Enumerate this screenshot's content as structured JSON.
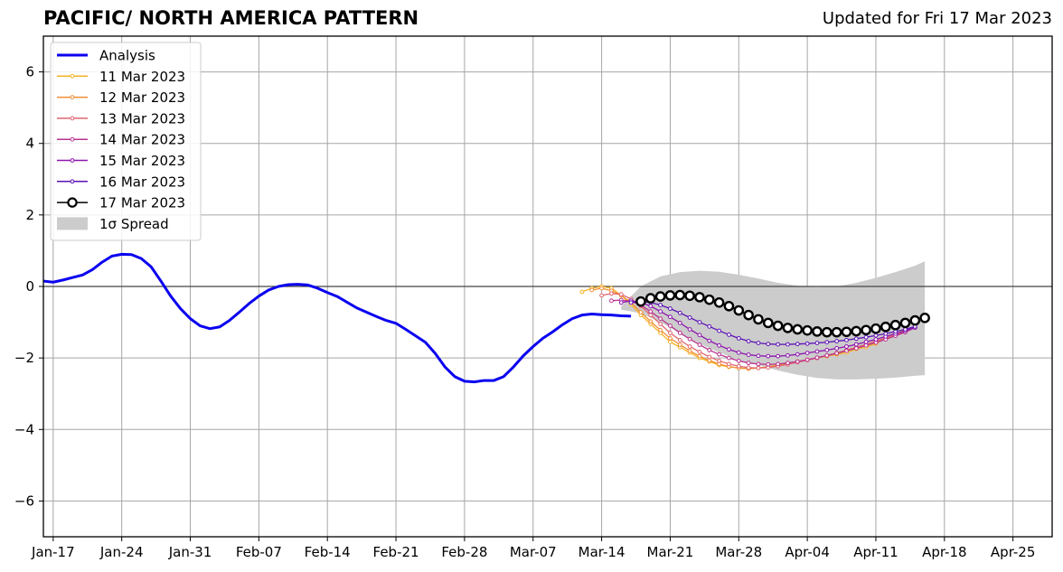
{
  "chart_data": {
    "type": "line",
    "title": "PACIFIC/ NORTH AMERICA PATTERN",
    "subtitle": "Updated for Fri 17 Mar 2023",
    "xlabel": "",
    "ylabel": "",
    "ylim": [
      -7,
      7
    ],
    "y_ticks": [
      -6,
      -4,
      -2,
      0,
      2,
      4,
      6
    ],
    "y_tick_labels": [
      "−6",
      "−4",
      "−2",
      "0",
      "2",
      "4",
      "6"
    ],
    "xlim": [
      "2023-01-16",
      "2023-04-29"
    ],
    "x_ticks": [
      "2023-01-17",
      "2023-01-24",
      "2023-01-31",
      "2023-02-07",
      "2023-02-14",
      "2023-02-21",
      "2023-02-28",
      "2023-03-07",
      "2023-03-14",
      "2023-03-21",
      "2023-03-28",
      "2023-04-04",
      "2023-04-11",
      "2023-04-18",
      "2023-04-25"
    ],
    "x_tick_labels": [
      "Jan-17",
      "Jan-24",
      "Jan-31",
      "Feb-07",
      "Feb-14",
      "Feb-21",
      "Feb-28",
      "Mar-07",
      "Mar-14",
      "Mar-21",
      "Mar-28",
      "Apr-04",
      "Apr-11",
      "Apr-18",
      "Apr-25"
    ],
    "grid": true,
    "legend_position": "top-left",
    "zero_line": true,
    "series": [
      {
        "name": "Analysis",
        "style": "thick-line",
        "color": "#0a00f0",
        "x": [
          "2023-01-16",
          "2023-01-17",
          "2023-01-18",
          "2023-01-19",
          "2023-01-20",
          "2023-01-21",
          "2023-01-22",
          "2023-01-23",
          "2023-01-24",
          "2023-01-25",
          "2023-01-26",
          "2023-01-27",
          "2023-01-28",
          "2023-01-29",
          "2023-01-30",
          "2023-01-31",
          "2023-02-01",
          "2023-02-02",
          "2023-02-03",
          "2023-02-04",
          "2023-02-05",
          "2023-02-06",
          "2023-02-07",
          "2023-02-08",
          "2023-02-09",
          "2023-02-10",
          "2023-02-11",
          "2023-02-12",
          "2023-02-13",
          "2023-02-14",
          "2023-02-15",
          "2023-02-16",
          "2023-02-17",
          "2023-02-18",
          "2023-02-19",
          "2023-02-20",
          "2023-02-21",
          "2023-02-22",
          "2023-02-23",
          "2023-02-24",
          "2023-02-25",
          "2023-02-26",
          "2023-02-27",
          "2023-02-28",
          "2023-03-01",
          "2023-03-02",
          "2023-03-03",
          "2023-03-04",
          "2023-03-05",
          "2023-03-06",
          "2023-03-07",
          "2023-03-08",
          "2023-03-09",
          "2023-03-10",
          "2023-03-11",
          "2023-03-12",
          "2023-03-13",
          "2023-03-14",
          "2023-03-15",
          "2023-03-16",
          "2023-03-17"
        ],
        "values": [
          0.15,
          0.12,
          0.18,
          0.25,
          0.32,
          0.47,
          0.68,
          0.85,
          0.9,
          0.89,
          0.78,
          0.55,
          0.15,
          -0.27,
          -0.62,
          -0.9,
          -1.1,
          -1.18,
          -1.13,
          -0.95,
          -0.72,
          -0.48,
          -0.27,
          -0.1,
          0.0,
          0.05,
          0.06,
          0.04,
          -0.05,
          -0.17,
          -0.28,
          -0.44,
          -0.6,
          -0.72,
          -0.84,
          -0.95,
          -1.03,
          -1.2,
          -1.38,
          -1.56,
          -1.87,
          -2.25,
          -2.52,
          -2.65,
          -2.67,
          -2.63,
          -2.63,
          -2.52,
          -2.25,
          -1.94,
          -1.68,
          -1.45,
          -1.27,
          -1.07,
          -0.9,
          -0.8,
          -0.77,
          -0.79,
          -0.8,
          -0.82,
          -0.83
        ]
      },
      {
        "name": "11 Mar 2023",
        "style": "small-markers",
        "color": "#f5b325",
        "x": [
          "2023-03-12",
          "2023-03-13",
          "2023-03-14",
          "2023-03-15",
          "2023-03-16",
          "2023-03-17",
          "2023-03-18",
          "2023-03-19",
          "2023-03-20",
          "2023-03-21",
          "2023-03-22",
          "2023-03-23",
          "2023-03-24",
          "2023-03-25",
          "2023-03-26",
          "2023-03-27",
          "2023-03-28",
          "2023-03-29",
          "2023-03-30",
          "2023-03-31",
          "2023-04-01",
          "2023-04-02",
          "2023-04-03",
          "2023-04-04",
          "2023-04-05",
          "2023-04-06",
          "2023-04-07",
          "2023-04-08",
          "2023-04-09",
          "2023-04-10",
          "2023-04-11",
          "2023-04-12",
          "2023-04-13",
          "2023-04-14"
        ],
        "values": [
          -0.15,
          -0.05,
          0.0,
          -0.05,
          -0.25,
          -0.5,
          -0.8,
          -1.05,
          -1.3,
          -1.55,
          -1.7,
          -1.85,
          -2.0,
          -2.1,
          -2.2,
          -2.25,
          -2.28,
          -2.3,
          -2.28,
          -2.25,
          -2.2,
          -2.15,
          -2.1,
          -2.05,
          -2.0,
          -1.95,
          -1.9,
          -1.85,
          -1.75,
          -1.7,
          -1.6,
          -1.45,
          -1.35,
          -1.2
        ]
      },
      {
        "name": "12 Mar 2023",
        "style": "small-markers",
        "color": "#f08e36",
        "x": [
          "2023-03-13",
          "2023-03-14",
          "2023-03-15",
          "2023-03-16",
          "2023-03-17",
          "2023-03-18",
          "2023-03-19",
          "2023-03-20",
          "2023-03-21",
          "2023-03-22",
          "2023-03-23",
          "2023-03-24",
          "2023-03-25",
          "2023-03-26",
          "2023-03-27",
          "2023-03-28",
          "2023-03-29",
          "2023-03-30",
          "2023-03-31",
          "2023-04-01",
          "2023-04-02",
          "2023-04-03",
          "2023-04-04",
          "2023-04-05",
          "2023-04-06",
          "2023-04-07",
          "2023-04-08",
          "2023-04-09",
          "2023-04-10",
          "2023-04-11",
          "2023-04-12",
          "2023-04-13",
          "2023-04-14",
          "2023-04-15"
        ],
        "values": [
          -0.1,
          -0.05,
          -0.12,
          -0.25,
          -0.45,
          -0.72,
          -0.98,
          -1.22,
          -1.45,
          -1.63,
          -1.8,
          -1.95,
          -2.07,
          -2.17,
          -2.24,
          -2.28,
          -2.3,
          -2.28,
          -2.25,
          -2.2,
          -2.15,
          -2.1,
          -2.05,
          -2.0,
          -1.95,
          -1.88,
          -1.8,
          -1.72,
          -1.65,
          -1.55,
          -1.45,
          -1.35,
          -1.25,
          -1.15
        ]
      },
      {
        "name": "13 Mar 2023",
        "style": "small-markers",
        "color": "#e06670",
        "x": [
          "2023-03-14",
          "2023-03-15",
          "2023-03-16",
          "2023-03-17",
          "2023-03-18",
          "2023-03-19",
          "2023-03-20",
          "2023-03-21",
          "2023-03-22",
          "2023-03-23",
          "2023-03-24",
          "2023-03-25",
          "2023-03-26",
          "2023-03-27",
          "2023-03-28",
          "2023-03-29",
          "2023-03-30",
          "2023-03-31",
          "2023-04-01",
          "2023-04-02",
          "2023-04-03",
          "2023-04-04",
          "2023-04-05",
          "2023-04-06",
          "2023-04-07",
          "2023-04-08",
          "2023-04-09",
          "2023-04-10",
          "2023-04-11",
          "2023-04-12",
          "2023-04-13",
          "2023-04-14",
          "2023-04-15"
        ],
        "values": [
          -0.25,
          -0.2,
          -0.22,
          -0.35,
          -0.55,
          -0.8,
          -1.05,
          -1.3,
          -1.5,
          -1.68,
          -1.83,
          -1.97,
          -2.08,
          -2.17,
          -2.23,
          -2.27,
          -2.28,
          -2.27,
          -2.23,
          -2.18,
          -2.12,
          -2.06,
          -2.0,
          -1.93,
          -1.86,
          -1.78,
          -1.7,
          -1.62,
          -1.53,
          -1.44,
          -1.35,
          -1.25,
          -1.15
        ]
      },
      {
        "name": "14 Mar 2023",
        "style": "small-markers",
        "color": "#b8328f",
        "x": [
          "2023-03-15",
          "2023-03-16",
          "2023-03-17",
          "2023-03-18",
          "2023-03-19",
          "2023-03-20",
          "2023-03-21",
          "2023-03-22",
          "2023-03-23",
          "2023-03-24",
          "2023-03-25",
          "2023-03-26",
          "2023-03-27",
          "2023-03-28",
          "2023-03-29",
          "2023-03-30",
          "2023-03-31",
          "2023-04-01",
          "2023-04-02",
          "2023-04-03",
          "2023-04-04",
          "2023-04-05",
          "2023-04-06",
          "2023-04-07",
          "2023-04-08",
          "2023-04-09",
          "2023-04-10",
          "2023-04-11",
          "2023-04-12",
          "2023-04-13",
          "2023-04-14",
          "2023-04-15"
        ],
        "values": [
          -0.4,
          -0.38,
          -0.42,
          -0.52,
          -0.7,
          -0.9,
          -1.1,
          -1.3,
          -1.47,
          -1.63,
          -1.78,
          -1.9,
          -2.0,
          -2.08,
          -2.14,
          -2.17,
          -2.18,
          -2.17,
          -2.14,
          -2.1,
          -2.05,
          -1.99,
          -1.93,
          -1.87,
          -1.8,
          -1.73,
          -1.65,
          -1.57,
          -1.48,
          -1.38,
          -1.28,
          -1.15
        ]
      },
      {
        "name": "15 Mar 2023",
        "style": "small-markers",
        "color": "#8c15ad",
        "x": [
          "2023-03-16",
          "2023-03-17",
          "2023-03-18",
          "2023-03-19",
          "2023-03-20",
          "2023-03-21",
          "2023-03-22",
          "2023-03-23",
          "2023-03-24",
          "2023-03-25",
          "2023-03-26",
          "2023-03-27",
          "2023-03-28",
          "2023-03-29",
          "2023-03-30",
          "2023-03-31",
          "2023-04-01",
          "2023-04-02",
          "2023-04-03",
          "2023-04-04",
          "2023-04-05",
          "2023-04-06",
          "2023-04-07",
          "2023-04-08",
          "2023-04-09",
          "2023-04-10",
          "2023-04-11",
          "2023-04-12",
          "2023-04-13",
          "2023-04-14",
          "2023-04-15"
        ],
        "values": [
          -0.45,
          -0.4,
          -0.45,
          -0.55,
          -0.7,
          -0.85,
          -1.02,
          -1.2,
          -1.36,
          -1.52,
          -1.65,
          -1.76,
          -1.85,
          -1.91,
          -1.94,
          -1.95,
          -1.95,
          -1.93,
          -1.9,
          -1.86,
          -1.82,
          -1.78,
          -1.73,
          -1.68,
          -1.62,
          -1.55,
          -1.48,
          -1.4,
          -1.32,
          -1.24,
          -1.15
        ]
      },
      {
        "name": "16 Mar 2023",
        "style": "small-markers",
        "color": "#5a10b5",
        "x": [
          "2023-03-17",
          "2023-03-18",
          "2023-03-19",
          "2023-03-20",
          "2023-03-21",
          "2023-03-22",
          "2023-03-23",
          "2023-03-24",
          "2023-03-25",
          "2023-03-26",
          "2023-03-27",
          "2023-03-28",
          "2023-03-29",
          "2023-03-30",
          "2023-03-31",
          "2023-04-01",
          "2023-04-02",
          "2023-04-03",
          "2023-04-04",
          "2023-04-05",
          "2023-04-06",
          "2023-04-07",
          "2023-04-08",
          "2023-04-09",
          "2023-04-10",
          "2023-04-11",
          "2023-04-12",
          "2023-04-13",
          "2023-04-14",
          "2023-04-15"
        ],
        "values": [
          -0.45,
          -0.42,
          -0.45,
          -0.52,
          -0.62,
          -0.74,
          -0.87,
          -1.0,
          -1.12,
          -1.24,
          -1.35,
          -1.45,
          -1.53,
          -1.58,
          -1.61,
          -1.62,
          -1.62,
          -1.61,
          -1.6,
          -1.58,
          -1.56,
          -1.53,
          -1.5,
          -1.46,
          -1.42,
          -1.37,
          -1.32,
          -1.26,
          -1.2,
          -1.12
        ]
      },
      {
        "name": "17 Mar 2023",
        "style": "large-open-markers",
        "color": "#000000",
        "x": [
          "2023-03-18",
          "2023-03-19",
          "2023-03-20",
          "2023-03-21",
          "2023-03-22",
          "2023-03-23",
          "2023-03-24",
          "2023-03-25",
          "2023-03-26",
          "2023-03-27",
          "2023-03-28",
          "2023-03-29",
          "2023-03-30",
          "2023-03-31",
          "2023-04-01",
          "2023-04-02",
          "2023-04-03",
          "2023-04-04",
          "2023-04-05",
          "2023-04-06",
          "2023-04-07",
          "2023-04-08",
          "2023-04-09",
          "2023-04-10",
          "2023-04-11",
          "2023-04-12",
          "2023-04-13",
          "2023-04-14",
          "2023-04-15",
          "2023-04-16"
        ],
        "values": [
          -0.42,
          -0.33,
          -0.28,
          -0.25,
          -0.24,
          -0.26,
          -0.3,
          -0.37,
          -0.45,
          -0.55,
          -0.67,
          -0.8,
          -0.92,
          -1.02,
          -1.1,
          -1.16,
          -1.2,
          -1.23,
          -1.26,
          -1.28,
          -1.28,
          -1.27,
          -1.25,
          -1.22,
          -1.18,
          -1.13,
          -1.08,
          -1.02,
          -0.95,
          -0.88
        ]
      }
    ],
    "spread": {
      "name": "1σ Spread",
      "color": "#cccccc",
      "x": [
        "2023-03-16",
        "2023-03-18",
        "2023-03-20",
        "2023-03-22",
        "2023-03-24",
        "2023-03-26",
        "2023-03-28",
        "2023-03-30",
        "2023-04-01",
        "2023-04-03",
        "2023-04-05",
        "2023-04-07",
        "2023-04-09",
        "2023-04-11",
        "2023-04-13",
        "2023-04-15",
        "2023-04-16"
      ],
      "upper": [
        -0.55,
        0.0,
        0.28,
        0.4,
        0.44,
        0.41,
        0.33,
        0.22,
        0.1,
        0.02,
        -0.02,
        0.0,
        0.1,
        0.24,
        0.4,
        0.58,
        0.7
      ],
      "lower": [
        -0.65,
        -0.75,
        -1.0,
        -1.3,
        -1.6,
        -1.85,
        -2.05,
        -2.2,
        -2.35,
        -2.47,
        -2.56,
        -2.6,
        -2.6,
        -2.58,
        -2.55,
        -2.5,
        -2.48
      ]
    }
  }
}
